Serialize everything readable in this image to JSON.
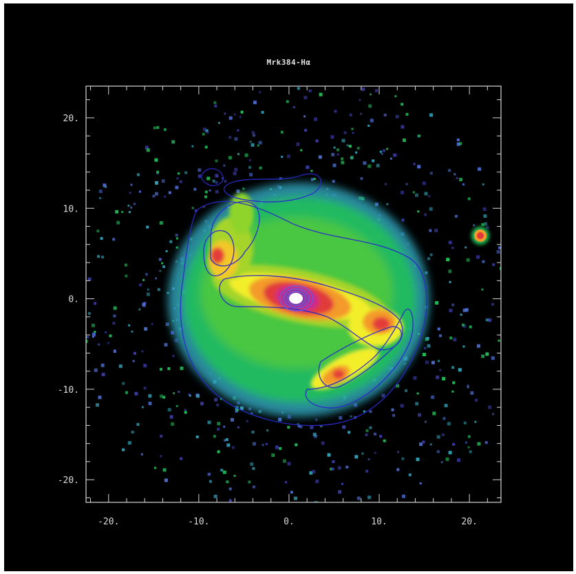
{
  "figure": {
    "title": "Mrk384-Hα",
    "background_color": "#000000",
    "frame_color": "#d8d8d8"
  },
  "axes": {
    "x_range": [
      -22.5,
      23.5
    ],
    "y_range": [
      -22.5,
      23.5
    ],
    "x_ticks": [
      {
        "value": -20,
        "label": "-20."
      },
      {
        "value": -10,
        "label": "-10."
      },
      {
        "value": 0,
        "label": "0."
      },
      {
        "value": 10,
        "label": "10."
      },
      {
        "value": 20,
        "label": "20."
      }
    ],
    "y_ticks": [
      {
        "value": 20,
        "label": "20."
      },
      {
        "value": 10,
        "label": "10."
      },
      {
        "value": 0,
        "label": "0."
      },
      {
        "value": -10,
        "label": "-10."
      },
      {
        "value": -20,
        "label": "-20."
      }
    ]
  },
  "image": {
    "colormap": [
      "#3c3caa",
      "#2f9fb6",
      "#22c05a",
      "#8fd42a",
      "#f2ee2a",
      "#f39a2a",
      "#e23a3a",
      "#cc2a8a",
      "#8c3aa6",
      "#ffffff"
    ],
    "contour_color": "#2a2ac8",
    "core_color": "#ffffff"
  }
}
